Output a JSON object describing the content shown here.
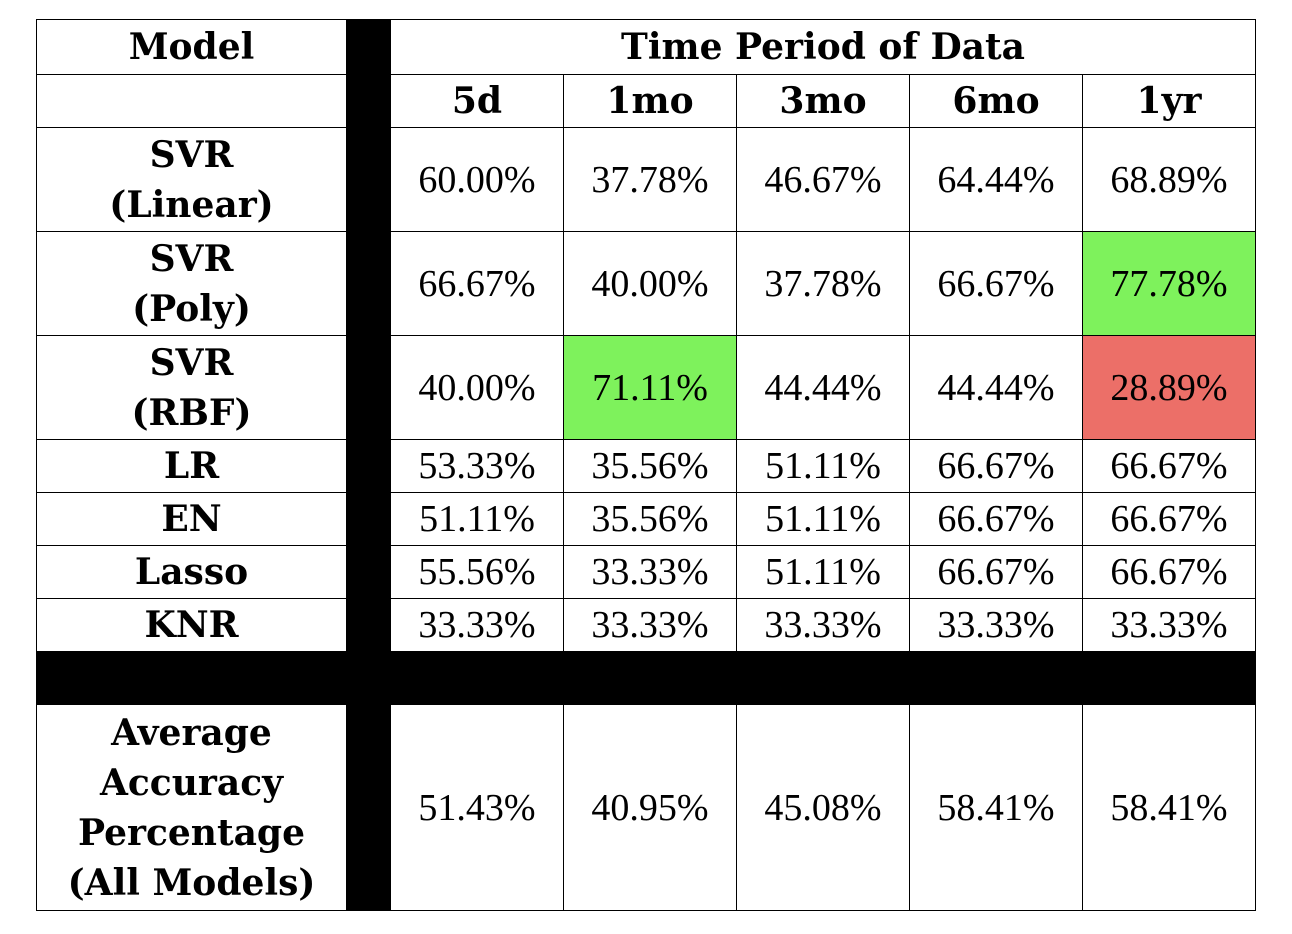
{
  "table": {
    "model_header": "Model",
    "period_header": "Time Period of Data",
    "periods": [
      "5d",
      "1mo",
      "3mo",
      "6mo",
      "1yr"
    ],
    "rows": [
      {
        "label_lines": [
          "SVR",
          "(Linear)"
        ],
        "values": [
          "60.00%",
          "37.78%",
          "46.67%",
          "64.44%",
          "68.89%"
        ]
      },
      {
        "label_lines": [
          "SVR",
          "(Poly)"
        ],
        "values": [
          "66.67%",
          "40.00%",
          "37.78%",
          "66.67%",
          "77.78%"
        ]
      },
      {
        "label_lines": [
          "SVR",
          "(RBF)"
        ],
        "values": [
          "40.00%",
          "71.11%",
          "44.44%",
          "44.44%",
          "28.89%"
        ]
      },
      {
        "label_lines": [
          "LR"
        ],
        "values": [
          "53.33%",
          "35.56%",
          "51.11%",
          "66.67%",
          "66.67%"
        ]
      },
      {
        "label_lines": [
          "EN"
        ],
        "values": [
          "51.11%",
          "35.56%",
          "51.11%",
          "66.67%",
          "66.67%"
        ]
      },
      {
        "label_lines": [
          "Lasso"
        ],
        "values": [
          "55.56%",
          "33.33%",
          "51.11%",
          "66.67%",
          "66.67%"
        ]
      },
      {
        "label_lines": [
          "KNR"
        ],
        "values": [
          "33.33%",
          "33.33%",
          "33.33%",
          "33.33%",
          "33.33%"
        ]
      }
    ],
    "average_row": {
      "label_lines": [
        "Average",
        "Accuracy",
        "Percentage",
        "(All Models)"
      ],
      "values": [
        "51.43%",
        "40.95%",
        "45.08%",
        "58.41%",
        "58.41%"
      ]
    },
    "colors": {
      "highlight_best": "#7ef25c",
      "highlight_worst": "#ec6f68",
      "separator": "#000000"
    }
  }
}
